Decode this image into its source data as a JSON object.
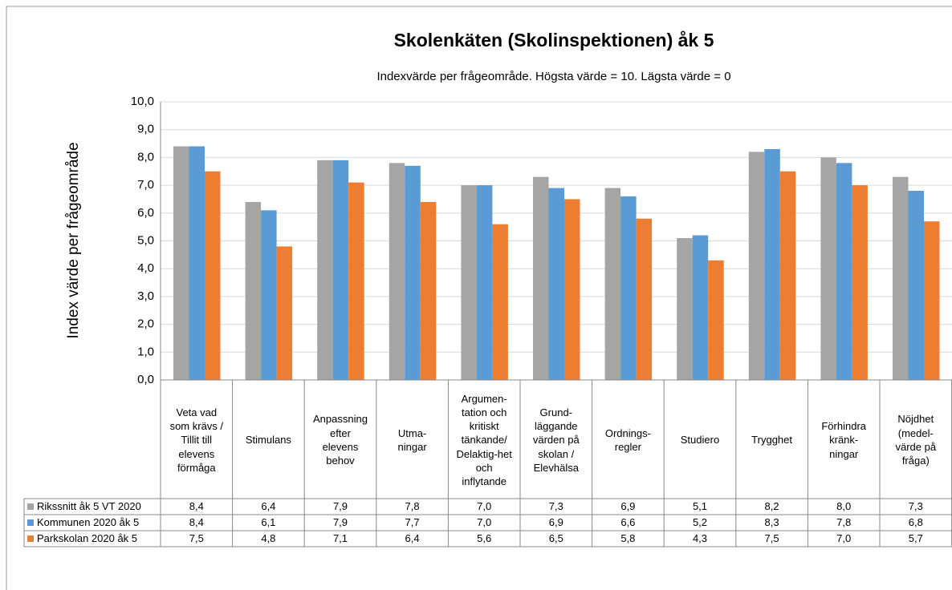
{
  "chart_data": {
    "type": "bar",
    "title": "Skolenkäten (Skolinspektionen) åk 5",
    "subtitle": "Indexvärde per frågeområde. Högsta värde = 10. Lägsta värde = 0",
    "y_label": "Index värde per frågeområde",
    "categories": [
      "Veta vad\nsom krävs /\nTillit till\nelevens\nförmåga",
      "Stimulans",
      "Anpassning\nefter\nelevens\nbehov",
      "Utma-\nningar",
      "Argumen-\ntation och\nkritiskt\ntänkande/\nDelaktig-het\noch\ninflytande",
      "Grund-\nläggande\nvärden på\nskolan /\nElevhälsa",
      "Ordnings-\nregler",
      "Studiero",
      "Trygghet",
      "Förhindra\nkränk-\nningar",
      "Nöjdhet\n(medel-\nvärde på\nfråga)"
    ],
    "series": [
      {
        "name": "Rikssnitt åk 5 VT 2020",
        "color": "#a5a5a5",
        "values": [
          8.4,
          6.4,
          7.9,
          7.8,
          7.0,
          7.3,
          6.9,
          5.1,
          8.2,
          8.0,
          7.3
        ],
        "value_labels": [
          "8,4",
          "6,4",
          "7,9",
          "7,8",
          "7,0",
          "7,3",
          "6,9",
          "5,1",
          "8,2",
          "8,0",
          "7,3"
        ]
      },
      {
        "name": "Kommunen 2020 åk 5",
        "color": "#5b9bd5",
        "values": [
          8.4,
          6.1,
          7.9,
          7.7,
          7.0,
          6.9,
          6.6,
          5.2,
          8.3,
          7.8,
          6.8
        ],
        "value_labels": [
          "8,4",
          "6,1",
          "7,9",
          "7,7",
          "7,0",
          "6,9",
          "6,6",
          "5,2",
          "8,3",
          "7,8",
          "6,8"
        ]
      },
      {
        "name": "Parkskolan 2020 åk 5",
        "color": "#ed7d31",
        "values": [
          7.5,
          4.8,
          7.1,
          6.4,
          5.6,
          6.5,
          5.8,
          4.3,
          7.5,
          7.0,
          5.7
        ],
        "value_labels": [
          "7,5",
          "4,8",
          "7,1",
          "6,4",
          "5,6",
          "6,5",
          "5,8",
          "4,3",
          "7,5",
          "7,0",
          "5,7"
        ]
      }
    ],
    "ylim": [
      0,
      10
    ],
    "yticks": [
      {
        "value": 0,
        "label": "0,0"
      },
      {
        "value": 1,
        "label": "1,0"
      },
      {
        "value": 2,
        "label": "2,0"
      },
      {
        "value": 3,
        "label": "3,0"
      },
      {
        "value": 4,
        "label": "4,0"
      },
      {
        "value": 5,
        "label": "5,0"
      },
      {
        "value": 6,
        "label": "6,0"
      },
      {
        "value": 7,
        "label": "7,0"
      },
      {
        "value": 8,
        "label": "8,0"
      },
      {
        "value": 9,
        "label": "9,0"
      },
      {
        "value": 10,
        "label": "10,0"
      }
    ],
    "grid": true
  }
}
